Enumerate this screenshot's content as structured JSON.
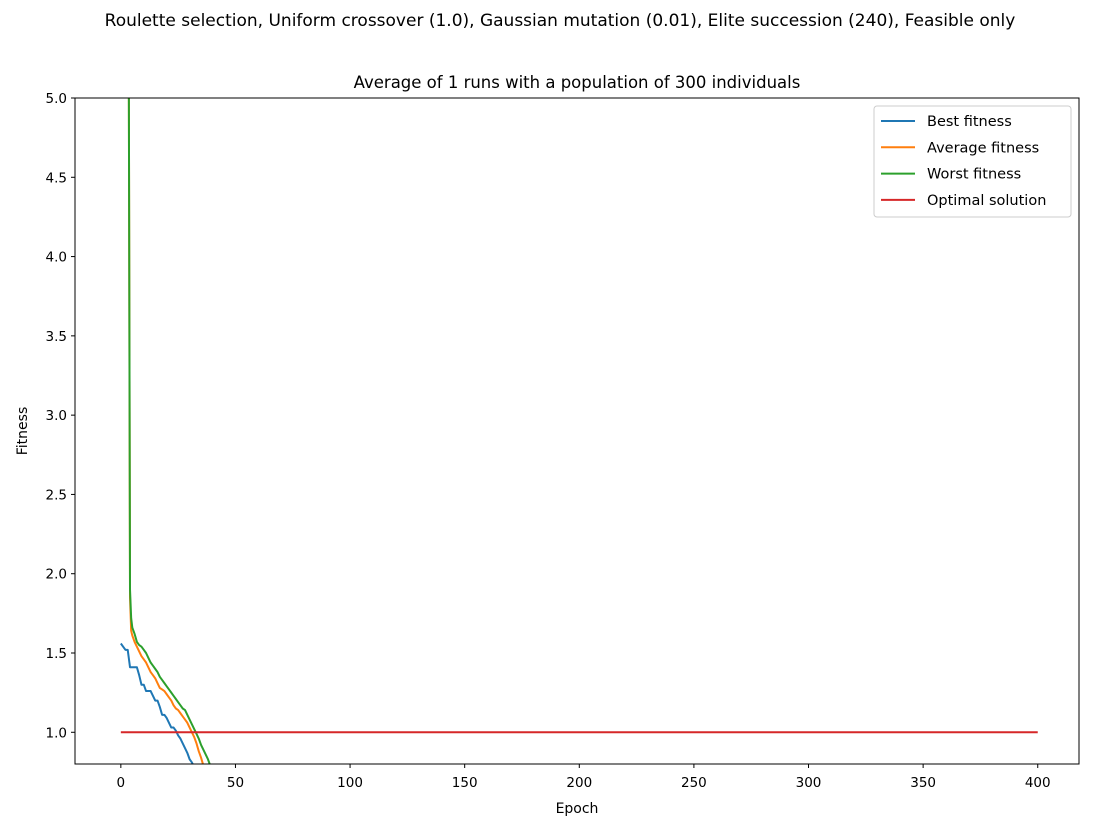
{
  "chart_data": {
    "type": "line",
    "suptitle": "Roulette selection, Uniform crossover (1.0), Gaussian mutation (0.01), Elite succession (240), Feasible only",
    "title": "Average of 1 runs with a population of 300 individuals",
    "xlabel": "Epoch",
    "ylabel": "Fitness",
    "xlim": [
      -20,
      418
    ],
    "ylim": [
      0.8,
      5.0
    ],
    "xticks": [
      0,
      50,
      100,
      150,
      200,
      250,
      300,
      350,
      400
    ],
    "xtick_labels": [
      "0",
      "50",
      "100",
      "150",
      "200",
      "250",
      "300",
      "350",
      "400"
    ],
    "yticks": [
      1.0,
      1.5,
      2.0,
      2.5,
      3.0,
      3.5,
      4.0,
      4.5,
      5.0
    ],
    "ytick_labels": [
      "1.0",
      "1.5",
      "2.0",
      "2.5",
      "3.0",
      "3.5",
      "4.0",
      "4.5",
      "5.0"
    ],
    "grid": false,
    "legend_position": "top-right",
    "series": [
      {
        "name": "Best fitness",
        "color": "#1f77b4",
        "x": [
          0,
          1,
          2,
          3,
          4,
          5,
          6,
          7,
          8,
          9,
          10,
          11,
          12,
          13,
          14,
          15,
          16,
          17,
          18,
          19,
          20,
          21,
          22,
          23,
          24,
          25,
          26,
          27,
          28,
          29,
          30,
          31,
          32
        ],
        "y": [
          1.56,
          1.54,
          1.52,
          1.52,
          1.41,
          1.41,
          1.41,
          1.41,
          1.36,
          1.3,
          1.3,
          1.26,
          1.26,
          1.26,
          1.23,
          1.2,
          1.2,
          1.16,
          1.11,
          1.11,
          1.09,
          1.06,
          1.03,
          1.03,
          1.01,
          0.98,
          0.96,
          0.93,
          0.9,
          0.87,
          0.83,
          0.81,
          0.78
        ]
      },
      {
        "name": "Average fitness",
        "color": "#ff7f0e",
        "x": [
          3.5,
          4,
          4.5,
          5,
          6,
          7,
          8,
          9,
          10,
          11,
          12,
          13,
          14,
          15,
          16,
          17,
          18,
          19,
          20,
          21,
          22,
          23,
          24,
          25,
          26,
          27,
          28,
          29,
          30,
          31,
          32,
          33,
          34,
          35,
          36
        ],
        "y": [
          5.0,
          1.85,
          1.64,
          1.61,
          1.57,
          1.54,
          1.51,
          1.48,
          1.46,
          1.44,
          1.41,
          1.38,
          1.36,
          1.34,
          1.31,
          1.28,
          1.27,
          1.26,
          1.24,
          1.22,
          1.2,
          1.17,
          1.15,
          1.14,
          1.12,
          1.1,
          1.08,
          1.06,
          1.03,
          1.0,
          0.97,
          0.93,
          0.88,
          0.84,
          0.79
        ]
      },
      {
        "name": "Worst fitness",
        "color": "#2ca02c",
        "x": [
          3.5,
          4,
          4.5,
          5,
          6,
          7,
          8,
          9,
          10,
          11,
          12,
          13,
          14,
          15,
          16,
          17,
          18,
          19,
          20,
          21,
          22,
          23,
          24,
          25,
          26,
          27,
          28,
          29,
          30,
          31,
          32,
          33,
          34,
          35,
          36,
          37,
          38,
          39
        ],
        "y": [
          5.0,
          1.9,
          1.72,
          1.66,
          1.62,
          1.57,
          1.55,
          1.54,
          1.52,
          1.5,
          1.47,
          1.44,
          1.42,
          1.4,
          1.38,
          1.35,
          1.33,
          1.31,
          1.29,
          1.27,
          1.25,
          1.23,
          1.21,
          1.19,
          1.17,
          1.15,
          1.14,
          1.11,
          1.08,
          1.05,
          1.02,
          0.99,
          0.96,
          0.92,
          0.89,
          0.86,
          0.83,
          0.79
        ]
      },
      {
        "name": "Optimal solution",
        "color": "#d62728",
        "x": [
          0,
          400
        ],
        "y": [
          1.0,
          1.0
        ]
      }
    ]
  }
}
